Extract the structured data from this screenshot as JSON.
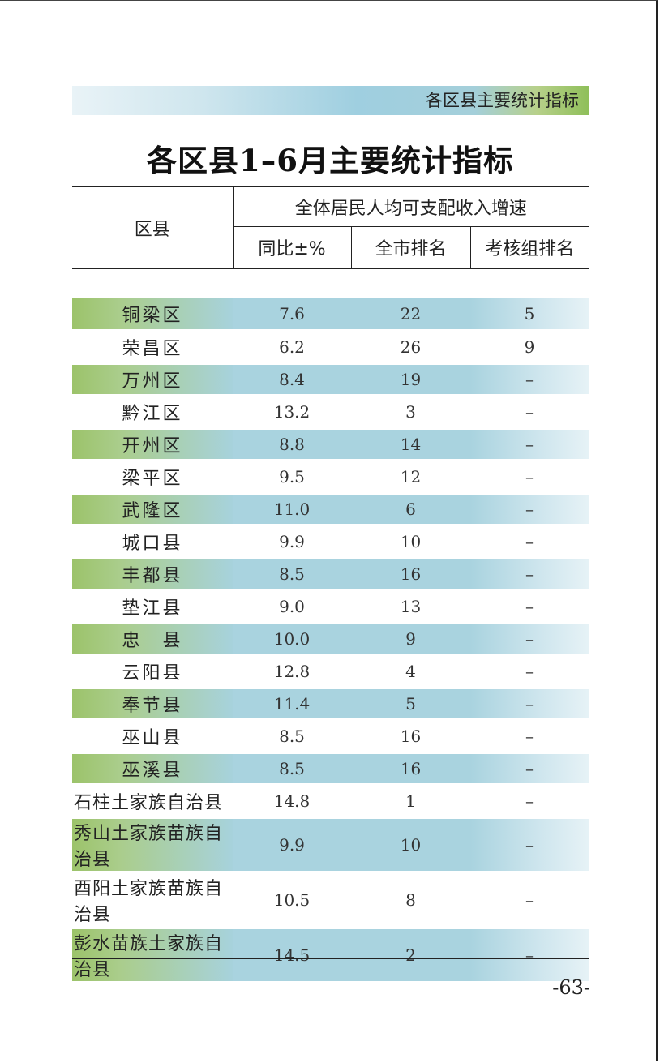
{
  "header": {
    "section": "各区县主要统计指标"
  },
  "title": "各区县1–6月主要统计指标",
  "table": {
    "col_district": "区县",
    "group_header": "全体居民人均可支配收入增速",
    "col_yoy": "同比±%",
    "col_city_rank": "全市排名",
    "col_group_rank": "考核组排名",
    "rows": [
      {
        "name": "铜梁区",
        "yoy": "7.6",
        "city_rank": "22",
        "group_rank": "5"
      },
      {
        "name": "荣昌区",
        "yoy": "6.2",
        "city_rank": "26",
        "group_rank": "9"
      },
      {
        "name": "万州区",
        "yoy": "8.4",
        "city_rank": "19",
        "group_rank": "–"
      },
      {
        "name": "黔江区",
        "yoy": "13.2",
        "city_rank": "3",
        "group_rank": "–"
      },
      {
        "name": "开州区",
        "yoy": "8.8",
        "city_rank": "14",
        "group_rank": "–"
      },
      {
        "name": "梁平区",
        "yoy": "9.5",
        "city_rank": "12",
        "group_rank": "–"
      },
      {
        "name": "武隆区",
        "yoy": "11.0",
        "city_rank": "6",
        "group_rank": "–"
      },
      {
        "name": "城口县",
        "yoy": "9.9",
        "city_rank": "10",
        "group_rank": "–"
      },
      {
        "name": "丰都县",
        "yoy": "8.5",
        "city_rank": "16",
        "group_rank": "–"
      },
      {
        "name": "垫江县",
        "yoy": "9.0",
        "city_rank": "13",
        "group_rank": "–"
      },
      {
        "name": "忠　县",
        "yoy": "10.0",
        "city_rank": "9",
        "group_rank": "–"
      },
      {
        "name": "云阳县",
        "yoy": "12.8",
        "city_rank": "4",
        "group_rank": "–"
      },
      {
        "name": "奉节县",
        "yoy": "11.4",
        "city_rank": "5",
        "group_rank": "–"
      },
      {
        "name": "巫山县",
        "yoy": "8.5",
        "city_rank": "16",
        "group_rank": "–"
      },
      {
        "name": "巫溪县",
        "yoy": "8.5",
        "city_rank": "16",
        "group_rank": "–"
      },
      {
        "name": "石柱土家族自治县",
        "yoy": "14.8",
        "city_rank": "1",
        "group_rank": "–"
      },
      {
        "name": "秀山土家族苗族自治县",
        "yoy": "9.9",
        "city_rank": "10",
        "group_rank": "–"
      },
      {
        "name": "酉阳土家族苗族自治县",
        "yoy": "10.5",
        "city_rank": "8",
        "group_rank": "–"
      },
      {
        "name": "彭水苗族土家族自治县",
        "yoy": "14.5",
        "city_rank": "2",
        "group_rank": "–"
      }
    ]
  },
  "page_number": "-63-"
}
